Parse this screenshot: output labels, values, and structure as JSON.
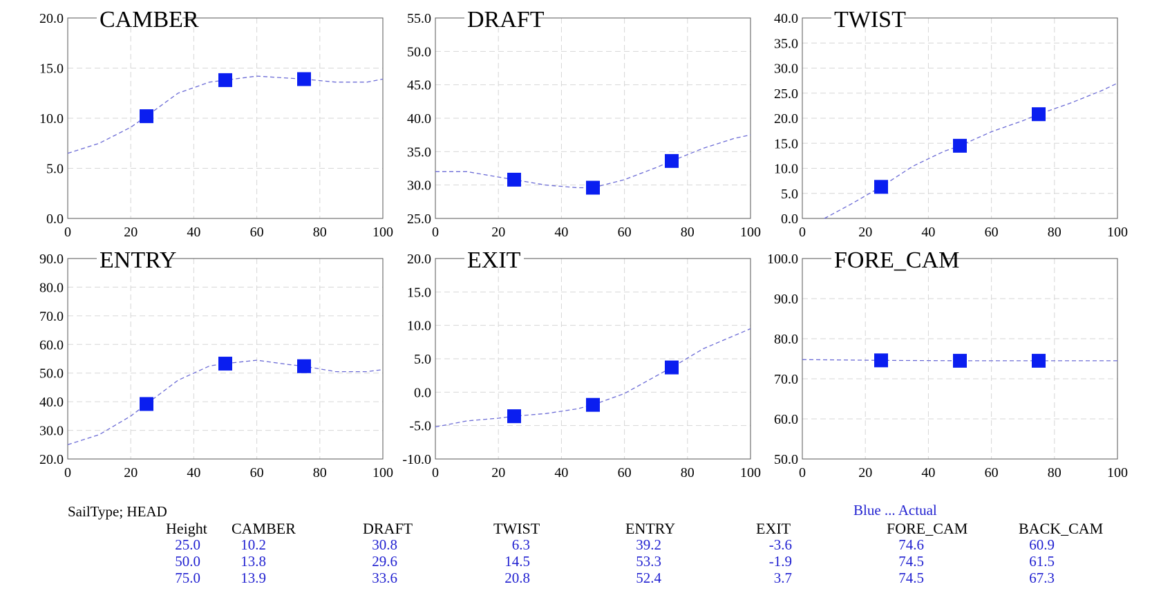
{
  "charts": [
    {
      "key": "camber",
      "title": "CAMBER",
      "type": "line",
      "ylim": [
        0,
        20
      ],
      "ystep": 5,
      "xlim": [
        0,
        100
      ],
      "xstep": 20,
      "points": [
        [
          25,
          10.2
        ],
        [
          50,
          13.8
        ],
        [
          75,
          13.9
        ]
      ],
      "curve_points": [
        [
          0,
          6.5
        ],
        [
          10,
          7.5
        ],
        [
          20,
          9.1
        ],
        [
          25,
          10.2
        ],
        [
          35,
          12.5
        ],
        [
          45,
          13.6
        ],
        [
          50,
          13.8
        ],
        [
          60,
          14.2
        ],
        [
          70,
          14.0
        ],
        [
          75,
          13.9
        ],
        [
          85,
          13.6
        ],
        [
          95,
          13.6
        ],
        [
          100,
          13.9
        ]
      ]
    },
    {
      "key": "draft",
      "title": "DRAFT",
      "type": "line",
      "ylim": [
        25,
        55
      ],
      "ystep": 5,
      "xlim": [
        0,
        100
      ],
      "xstep": 20,
      "points": [
        [
          25,
          30.8
        ],
        [
          50,
          29.6
        ],
        [
          75,
          33.6
        ]
      ],
      "curve_points": [
        [
          0,
          32.0
        ],
        [
          10,
          32.0
        ],
        [
          20,
          31.2
        ],
        [
          25,
          30.8
        ],
        [
          35,
          30.0
        ],
        [
          45,
          29.6
        ],
        [
          50,
          29.6
        ],
        [
          60,
          30.8
        ],
        [
          70,
          32.6
        ],
        [
          75,
          33.6
        ],
        [
          85,
          35.5
        ],
        [
          95,
          37.0
        ],
        [
          100,
          37.5
        ]
      ]
    },
    {
      "key": "twist",
      "title": "TWIST",
      "type": "line",
      "ylim": [
        0,
        40
      ],
      "ystep": 5,
      "xlim": [
        0,
        100
      ],
      "xstep": 20,
      "points": [
        [
          25,
          6.3
        ],
        [
          50,
          14.5
        ],
        [
          75,
          20.8
        ]
      ],
      "curve_points": [
        [
          7,
          0.0
        ],
        [
          15,
          2.7
        ],
        [
          25,
          6.3
        ],
        [
          35,
          10.4
        ],
        [
          45,
          13.4
        ],
        [
          50,
          14.5
        ],
        [
          60,
          17.3
        ],
        [
          70,
          19.5
        ],
        [
          75,
          20.8
        ],
        [
          85,
          23.0
        ],
        [
          95,
          25.5
        ],
        [
          100,
          27.0
        ]
      ]
    },
    {
      "key": "entry",
      "title": "ENTRY",
      "type": "line",
      "ylim": [
        20,
        90
      ],
      "ystep": 10,
      "xlim": [
        0,
        100
      ],
      "xstep": 20,
      "points": [
        [
          25,
          39.2
        ],
        [
          50,
          53.3
        ],
        [
          75,
          52.4
        ]
      ],
      "curve_points": [
        [
          0,
          25.0
        ],
        [
          10,
          28.5
        ],
        [
          20,
          35.0
        ],
        [
          25,
          39.2
        ],
        [
          35,
          47.5
        ],
        [
          45,
          52.5
        ],
        [
          50,
          53.3
        ],
        [
          60,
          54.5
        ],
        [
          70,
          53.0
        ],
        [
          75,
          52.4
        ],
        [
          85,
          50.5
        ],
        [
          95,
          50.5
        ],
        [
          100,
          51.2
        ]
      ]
    },
    {
      "key": "exit",
      "title": "EXIT",
      "type": "line",
      "ylim": [
        -10,
        20
      ],
      "ystep": 5,
      "xlim": [
        0,
        100
      ],
      "xstep": 20,
      "points": [
        [
          25,
          -3.6
        ],
        [
          50,
          -1.9
        ],
        [
          75,
          3.7
        ]
      ],
      "curve_points": [
        [
          0,
          -5.2
        ],
        [
          10,
          -4.3
        ],
        [
          20,
          -3.9
        ],
        [
          25,
          -3.6
        ],
        [
          35,
          -3.2
        ],
        [
          45,
          -2.5
        ],
        [
          50,
          -1.9
        ],
        [
          60,
          -0.2
        ],
        [
          70,
          2.4
        ],
        [
          75,
          3.7
        ],
        [
          85,
          6.5
        ],
        [
          95,
          8.5
        ],
        [
          100,
          9.5
        ]
      ]
    },
    {
      "key": "fore_cam",
      "title": "FORE_CAM",
      "type": "line",
      "ylim": [
        50,
        100
      ],
      "ystep": 10,
      "xlim": [
        0,
        100
      ],
      "xstep": 20,
      "points": [
        [
          25,
          74.6
        ],
        [
          50,
          74.5
        ],
        [
          75,
          74.5
        ]
      ],
      "curve_points": [
        [
          0,
          74.8
        ],
        [
          25,
          74.6
        ],
        [
          50,
          74.5
        ],
        [
          75,
          74.5
        ],
        [
          100,
          74.5
        ]
      ]
    }
  ],
  "chart_data": [
    {
      "type": "line",
      "title": "CAMBER",
      "x": [
        25,
        50,
        75
      ],
      "series": [
        {
          "values": [
            10.2,
            13.8,
            13.9
          ]
        }
      ],
      "xlim": [
        0,
        100
      ],
      "ylim": [
        0,
        20
      ],
      "grid": true
    },
    {
      "type": "line",
      "title": "DRAFT",
      "x": [
        25,
        50,
        75
      ],
      "series": [
        {
          "values": [
            30.8,
            29.6,
            33.6
          ]
        }
      ],
      "xlim": [
        0,
        100
      ],
      "ylim": [
        25,
        55
      ],
      "grid": true
    },
    {
      "type": "line",
      "title": "TWIST",
      "x": [
        25,
        50,
        75
      ],
      "series": [
        {
          "values": [
            6.3,
            14.5,
            20.8
          ]
        }
      ],
      "xlim": [
        0,
        100
      ],
      "ylim": [
        0,
        40
      ],
      "grid": true
    },
    {
      "type": "line",
      "title": "ENTRY",
      "x": [
        25,
        50,
        75
      ],
      "series": [
        {
          "values": [
            39.2,
            53.3,
            52.4
          ]
        }
      ],
      "xlim": [
        0,
        100
      ],
      "ylim": [
        20,
        90
      ],
      "grid": true
    },
    {
      "type": "line",
      "title": "EXIT",
      "x": [
        25,
        50,
        75
      ],
      "series": [
        {
          "values": [
            -3.6,
            -1.9,
            3.7
          ]
        }
      ],
      "xlim": [
        0,
        100
      ],
      "ylim": [
        -10,
        20
      ],
      "grid": true
    },
    {
      "type": "line",
      "title": "FORE_CAM",
      "x": [
        25,
        50,
        75
      ],
      "series": [
        {
          "values": [
            74.6,
            74.5,
            74.5
          ]
        }
      ],
      "xlim": [
        0,
        100
      ],
      "ylim": [
        50,
        100
      ],
      "grid": true
    }
  ],
  "colors": {
    "marker": "#0a1ef0",
    "curve": "#6b6bd6",
    "grid": "#d6d6d6",
    "text_blue": "#1f1fd0"
  },
  "info": {
    "sail_type": "SailType;  HEAD",
    "legend": "Blue ... Actual",
    "columns": [
      "Height",
      "CAMBER",
      "DRAFT",
      "TWIST",
      "ENTRY",
      "EXIT",
      "FORE_CAM",
      "BACK_CAM"
    ],
    "rows": [
      [
        "25.0",
        "10.2",
        "30.8",
        "6.3",
        "39.2",
        "-3.6",
        "74.6",
        "60.9"
      ],
      [
        "50.0",
        "13.8",
        "29.6",
        "14.5",
        "53.3",
        "-1.9",
        "74.5",
        "61.5"
      ],
      [
        "75.0",
        "13.9",
        "33.6",
        "20.8",
        "52.4",
        "3.7",
        "74.5",
        "67.3"
      ]
    ]
  }
}
